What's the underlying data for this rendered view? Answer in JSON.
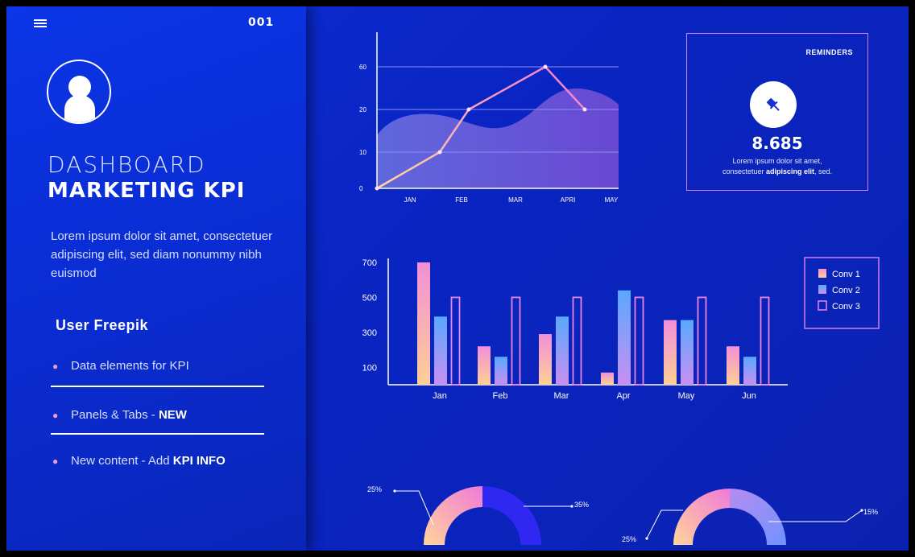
{
  "header": {
    "page_number": "001",
    "menu_icon": "hamburger-icon"
  },
  "profile": {
    "avatar_icon": "user-avatar-icon"
  },
  "sidebar": {
    "title_light": "DASHBOARD",
    "title_bold": "MARKETING KPI",
    "description": "Lorem ipsum dolor sit amet, consectetuer adipiscing elit, sed diam nonummy nibh euismod",
    "user_heading": "User Freepik",
    "items": [
      {
        "text": "Data elements for KPI",
        "strong": ""
      },
      {
        "text": "Panels & Tabs - ",
        "strong": "NEW"
      },
      {
        "text": "New content - Add ",
        "strong": "KPI INFO"
      }
    ]
  },
  "reminders": {
    "title": "REMINDERS",
    "icon": "pin-icon",
    "value": "8.685",
    "line1": "Lorem ipsum dolor sit amet,",
    "line2_prefix": "consectetuer ",
    "line2_bold": "adipiscing elit",
    "line2_suffix": ", sed."
  },
  "colors": {
    "accent_pink": "#f39bd1",
    "accent_blue": "#5b8dff",
    "panel_border": "#d27ef1"
  },
  "chart_data": [
    {
      "type": "line",
      "categories": [
        "JAN",
        "FEB",
        "MAR",
        "APRI",
        "MAY"
      ],
      "y_tick_labels": [
        "0",
        "10",
        "20",
        "60"
      ],
      "series": [
        {
          "values": [
            0,
            10,
            20,
            60,
            20
          ]
        }
      ],
      "area_shape": true,
      "grid": true
    },
    {
      "type": "bar",
      "categories": [
        "Jan",
        "Feb",
        "Mar",
        "Apr",
        "May",
        "Jun"
      ],
      "y_ticks": [
        100,
        300,
        500,
        700
      ],
      "ylim": [
        0,
        760
      ],
      "series": [
        {
          "name": "Conv 1",
          "values": [
            700,
            220,
            290,
            70,
            370,
            220
          ]
        },
        {
          "name": "Conv 2",
          "values": [
            390,
            160,
            390,
            540,
            370,
            160
          ]
        },
        {
          "name": "Conv 3",
          "values": [
            500,
            500,
            500,
            500,
            500,
            500
          ]
        }
      ],
      "legend": "top-right"
    },
    {
      "type": "pie",
      "labels": [
        "25%",
        "35%"
      ],
      "values": [
        25,
        35
      ]
    },
    {
      "type": "pie",
      "labels": [
        "25%",
        "15%"
      ],
      "values": [
        25,
        15
      ]
    }
  ]
}
